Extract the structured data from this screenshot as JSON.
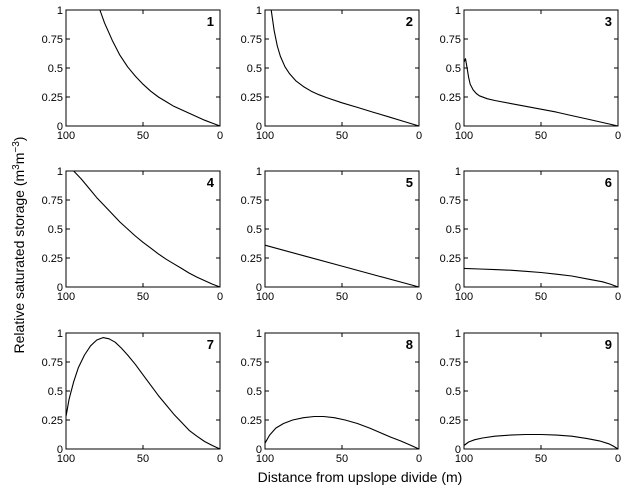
{
  "figure": {
    "xlabel": "Distance from upslope divide (m)",
    "ylabel_main": "Relative saturated storage (m",
    "ylabel_sup1": "3",
    "ylabel_mid": "m",
    "ylabel_sup2": "−3",
    "ylabel_end": ")"
  },
  "chart_data": [
    {
      "type": "line",
      "panel": "1",
      "xlim": [
        100,
        0
      ],
      "ylim": [
        0,
        1
      ],
      "xticks": [
        "100",
        "50",
        "0"
      ],
      "yticks": [
        "0",
        "0.25",
        "0.5",
        "0.75",
        "1"
      ],
      "grid": false,
      "series": [
        {
          "x": [
            78,
            75,
            70,
            65,
            60,
            55,
            50,
            45,
            40,
            35,
            30,
            25,
            20,
            15,
            10,
            5,
            0
          ],
          "y": [
            1.0,
            0.89,
            0.74,
            0.61,
            0.51,
            0.43,
            0.36,
            0.3,
            0.25,
            0.21,
            0.17,
            0.14,
            0.11,
            0.08,
            0.05,
            0.025,
            0.0
          ]
        }
      ]
    },
    {
      "type": "line",
      "panel": "2",
      "xlim": [
        100,
        0
      ],
      "ylim": [
        0,
        1
      ],
      "xticks": [
        "100",
        "50",
        "0"
      ],
      "yticks": [
        "0",
        "0.25",
        "0.5",
        "0.75",
        "1"
      ],
      "grid": false,
      "series": [
        {
          "x": [
            96,
            94,
            92,
            90,
            87,
            84,
            80,
            75,
            70,
            65,
            60,
            50,
            40,
            30,
            20,
            10,
            0
          ],
          "y": [
            1.0,
            0.82,
            0.69,
            0.6,
            0.51,
            0.45,
            0.39,
            0.34,
            0.3,
            0.27,
            0.245,
            0.2,
            0.16,
            0.12,
            0.08,
            0.04,
            0.0
          ]
        }
      ]
    },
    {
      "type": "line",
      "panel": "3",
      "xlim": [
        100,
        0
      ],
      "ylim": [
        0,
        1
      ],
      "xticks": [
        "100",
        "50",
        "0"
      ],
      "yticks": [
        "0",
        "0.25",
        "0.5",
        "0.75",
        "1"
      ],
      "grid": false,
      "series": [
        {
          "x": [
            100,
            99,
            98,
            97,
            96,
            94,
            92,
            90,
            85,
            80,
            70,
            60,
            50,
            40,
            30,
            20,
            10,
            0
          ],
          "y": [
            0.55,
            0.58,
            0.5,
            0.42,
            0.36,
            0.31,
            0.28,
            0.26,
            0.235,
            0.22,
            0.195,
            0.17,
            0.145,
            0.12,
            0.09,
            0.06,
            0.03,
            0.0
          ]
        }
      ]
    },
    {
      "type": "line",
      "panel": "4",
      "xlim": [
        100,
        0
      ],
      "ylim": [
        0,
        1
      ],
      "xticks": [
        "100",
        "50",
        "0"
      ],
      "yticks": [
        "0",
        "0.25",
        "0.5",
        "0.75",
        "1"
      ],
      "grid": false,
      "series": [
        {
          "x": [
            95,
            90,
            85,
            80,
            75,
            70,
            65,
            60,
            55,
            50,
            45,
            40,
            35,
            30,
            25,
            20,
            15,
            10,
            5,
            0
          ],
          "y": [
            1.0,
            0.93,
            0.85,
            0.77,
            0.7,
            0.63,
            0.56,
            0.5,
            0.44,
            0.385,
            0.335,
            0.285,
            0.24,
            0.2,
            0.16,
            0.12,
            0.085,
            0.055,
            0.025,
            0.0
          ]
        }
      ]
    },
    {
      "type": "line",
      "panel": "5",
      "xlim": [
        100,
        0
      ],
      "ylim": [
        0,
        1
      ],
      "xticks": [
        "100",
        "50",
        "0"
      ],
      "yticks": [
        "0",
        "0.25",
        "0.5",
        "0.75",
        "1"
      ],
      "grid": false,
      "series": [
        {
          "x": [
            100,
            75,
            50,
            25,
            0
          ],
          "y": [
            0.36,
            0.27,
            0.18,
            0.09,
            0.0
          ]
        }
      ]
    },
    {
      "type": "line",
      "panel": "6",
      "xlim": [
        100,
        0
      ],
      "ylim": [
        0,
        1
      ],
      "xticks": [
        "100",
        "50",
        "0"
      ],
      "yticks": [
        "0",
        "0.25",
        "0.5",
        "0.75",
        "1"
      ],
      "grid": false,
      "series": [
        {
          "x": [
            100,
            90,
            80,
            70,
            60,
            50,
            40,
            30,
            20,
            10,
            5,
            0
          ],
          "y": [
            0.16,
            0.155,
            0.15,
            0.145,
            0.135,
            0.125,
            0.11,
            0.095,
            0.07,
            0.045,
            0.025,
            0.0
          ]
        }
      ]
    },
    {
      "type": "line",
      "panel": "7",
      "xlim": [
        100,
        0
      ],
      "ylim": [
        0,
        1
      ],
      "xticks": [
        "100",
        "50",
        "0"
      ],
      "yticks": [
        "0",
        "0.25",
        "0.5",
        "0.75",
        "1"
      ],
      "grid": false,
      "series": [
        {
          "x": [
            100,
            98,
            95,
            92,
            88,
            84,
            80,
            76,
            72,
            68,
            64,
            60,
            55,
            50,
            45,
            40,
            35,
            30,
            25,
            20,
            15,
            10,
            5,
            0
          ],
          "y": [
            0.28,
            0.43,
            0.58,
            0.7,
            0.81,
            0.89,
            0.94,
            0.96,
            0.95,
            0.92,
            0.87,
            0.81,
            0.73,
            0.64,
            0.55,
            0.46,
            0.38,
            0.3,
            0.23,
            0.16,
            0.11,
            0.065,
            0.03,
            0.0
          ]
        }
      ]
    },
    {
      "type": "line",
      "panel": "8",
      "xlim": [
        100,
        0
      ],
      "ylim": [
        0,
        1
      ],
      "xticks": [
        "100",
        "50",
        "0"
      ],
      "yticks": [
        "0",
        "0.25",
        "0.5",
        "0.75",
        "1"
      ],
      "grid": false,
      "series": [
        {
          "x": [
            100,
            97,
            93,
            88,
            82,
            75,
            68,
            62,
            55,
            48,
            40,
            32,
            25,
            18,
            12,
            6,
            0
          ],
          "y": [
            0.05,
            0.12,
            0.18,
            0.22,
            0.25,
            0.27,
            0.28,
            0.28,
            0.27,
            0.25,
            0.22,
            0.18,
            0.14,
            0.1,
            0.07,
            0.035,
            0.0
          ]
        }
      ]
    },
    {
      "type": "line",
      "panel": "9",
      "xlim": [
        100,
        0
      ],
      "ylim": [
        0,
        1
      ],
      "xticks": [
        "100",
        "50",
        "0"
      ],
      "yticks": [
        "0",
        "0.25",
        "0.5",
        "0.75",
        "1"
      ],
      "grid": false,
      "series": [
        {
          "x": [
            100,
            97,
            93,
            88,
            80,
            70,
            60,
            50,
            40,
            30,
            20,
            12,
            6,
            3,
            0
          ],
          "y": [
            0.03,
            0.06,
            0.08,
            0.095,
            0.11,
            0.12,
            0.125,
            0.125,
            0.12,
            0.11,
            0.09,
            0.07,
            0.045,
            0.025,
            0.0
          ]
        }
      ]
    }
  ]
}
